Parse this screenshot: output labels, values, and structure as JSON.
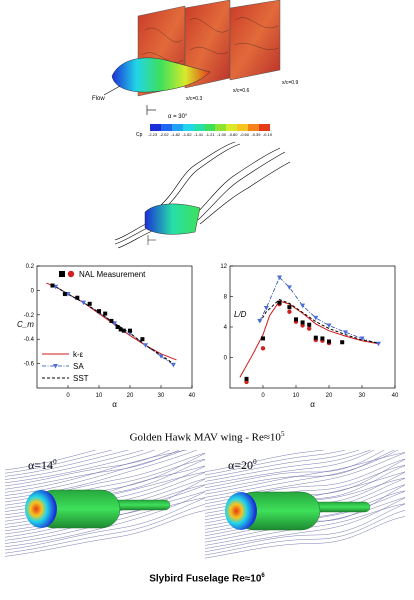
{
  "top_figure": {
    "flow_label": "Flow",
    "alpha_label": "α = 30°",
    "plane_labels": [
      "x/c=0.3",
      "x/c=0.6",
      "x/c=0.9"
    ],
    "colorbar": {
      "label": "Cp",
      "ticks": [
        "-2.23",
        "-2.02",
        "-1.82",
        "-1.62",
        "-1.41",
        "-1.21",
        "-1.00",
        "-0.80",
        "-0.60",
        "-0.39",
        "-0.19"
      ],
      "colors": [
        "#1b2fd6",
        "#1f67f0",
        "#22a2f5",
        "#21d6e8",
        "#26e0a8",
        "#3ee05a",
        "#8fe433",
        "#d8ea2a",
        "#f6c51f",
        "#f5821a",
        "#e43a18"
      ]
    }
  },
  "chart_data": [
    {
      "type": "scatter",
      "title": "",
      "xlabel": "α",
      "ylabel": "C_m",
      "xlim": [
        -10,
        40
      ],
      "ylim": [
        -0.8,
        0.2
      ],
      "xticks": [
        "0",
        "10",
        "20",
        "30",
        "40"
      ],
      "yticks": [
        "0.2",
        "0",
        "-0.2",
        "-0.4",
        "-0.6"
      ],
      "legend": [
        "NAL Measurement",
        "k-ε",
        "SA",
        "SST"
      ],
      "series": [
        {
          "name": "NAL Measurement",
          "x": [
            -5,
            -1,
            3,
            7,
            10,
            12,
            14,
            16,
            17,
            18,
            20,
            24
          ],
          "y": [
            0.04,
            -0.03,
            -0.06,
            -0.11,
            -0.17,
            -0.19,
            -0.25,
            -0.3,
            -0.32,
            -0.33,
            -0.33,
            -0.4
          ]
        },
        {
          "name": "k-ε",
          "x": [
            -7,
            -4,
            0,
            5,
            10,
            15,
            20,
            25,
            30,
            35
          ],
          "y": [
            0.06,
            0.03,
            -0.03,
            -0.1,
            -0.19,
            -0.28,
            -0.37,
            -0.45,
            -0.52,
            -0.57
          ]
        },
        {
          "name": "SA",
          "x": [
            -4,
            0,
            5,
            10,
            15,
            20,
            25,
            30,
            34
          ],
          "y": [
            0.03,
            -0.03,
            -0.1,
            -0.18,
            -0.27,
            -0.35,
            -0.45,
            -0.54,
            -0.61
          ]
        },
        {
          "name": "SST",
          "x": [
            -4,
            0,
            5,
            10,
            15,
            20,
            25,
            30,
            34
          ],
          "y": [
            0.03,
            -0.03,
            -0.1,
            -0.18,
            -0.27,
            -0.35,
            -0.45,
            -0.53,
            -0.6
          ]
        }
      ]
    },
    {
      "type": "line",
      "title": "",
      "xlabel": "α",
      "ylabel": "L/D",
      "xlim": [
        -10,
        40
      ],
      "ylim": [
        -4,
        12
      ],
      "xticks": [
        "0",
        "10",
        "20",
        "30",
        "40"
      ],
      "yticks": [
        "12",
        "8",
        "4",
        "0"
      ],
      "series": [
        {
          "name": "NAL Measurement (square)",
          "x": [
            -5,
            0,
            5,
            8,
            10,
            12,
            14,
            16,
            18,
            20,
            24
          ],
          "y": [
            -2.8,
            2.5,
            7.2,
            6.6,
            5.0,
            4.6,
            4.3,
            2.6,
            2.5,
            2.1,
            2.0
          ]
        },
        {
          "name": "NAL Measurement (circle)",
          "x": [
            -5,
            0,
            5,
            8,
            10,
            12,
            14,
            16,
            18,
            20
          ],
          "y": [
            -3.2,
            1.2,
            7.0,
            6.0,
            4.7,
            4.2,
            3.8,
            2.3,
            2.2,
            1.9
          ]
        },
        {
          "name": "k-ε",
          "x": [
            -7,
            -3,
            0,
            2,
            5,
            8,
            12,
            16,
            20,
            25,
            30,
            35
          ],
          "y": [
            -2.6,
            0.5,
            3.0,
            5.5,
            7.4,
            7.0,
            5.8,
            4.4,
            3.5,
            2.8,
            2.2,
            1.8
          ]
        },
        {
          "name": "SA",
          "x": [
            -1,
            1,
            5,
            8,
            12,
            16,
            20,
            25,
            30,
            35
          ],
          "y": [
            4.8,
            6.5,
            10.5,
            9.2,
            6.8,
            5.2,
            4.2,
            3.3,
            2.5,
            1.8
          ]
        },
        {
          "name": "SST",
          "x": [
            -1,
            1,
            5,
            8,
            12,
            16,
            20,
            25,
            30,
            35
          ],
          "y": [
            4.6,
            6.0,
            7.6,
            7.1,
            5.9,
            4.7,
            3.8,
            3.0,
            2.3,
            1.9
          ]
        }
      ]
    }
  ],
  "captions": {
    "wing": "Golden Hawk MAV wing - Re≈10",
    "wing_exp": "5",
    "fuselage": "Slybird Fuselage Re≈10",
    "fuselage_exp": "6"
  },
  "fuselage_panels": [
    {
      "alpha_label": "α=14",
      "alpha_exp": "0"
    },
    {
      "alpha_label": "α=20",
      "alpha_exp": "0"
    }
  ]
}
